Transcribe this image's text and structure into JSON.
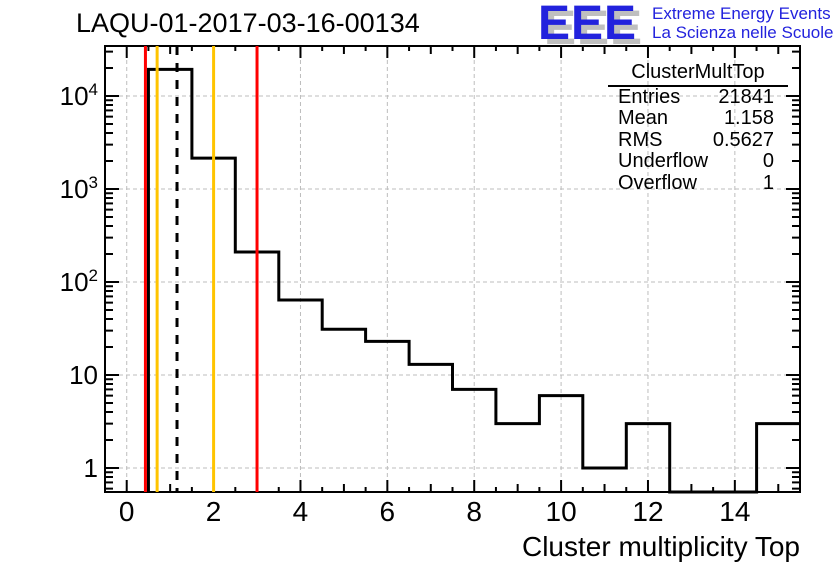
{
  "page_title": "LAQU-01-2017-03-16-00134",
  "logo": {
    "acronym": "EEE",
    "line1": "Extreme Energy Events",
    "line2": "La Scienza nelle Scuole",
    "blue": "#2222dd"
  },
  "stats_box": {
    "title": "ClusterMultTop",
    "rows": [
      {
        "label": "Entries",
        "value": "21841"
      },
      {
        "label": "Mean",
        "value": "1.158"
      },
      {
        "label": "RMS",
        "value": "0.5627"
      },
      {
        "label": "Underflow",
        "value": "0"
      },
      {
        "label": "Overflow",
        "value": "1"
      }
    ]
  },
  "chart_data": {
    "type": "bar",
    "subtype": "step-histogram",
    "title": "LAQU-01-2017-03-16-00134",
    "xlabel": "Cluster multiplicity Top",
    "ylabel": "",
    "yscale": "log",
    "xlim": [
      -0.5,
      15.5
    ],
    "ylim": [
      0.55,
      34000
    ],
    "bin_width": 1,
    "bin_centers": [
      1,
      2,
      3,
      4,
      5,
      6,
      7,
      8,
      9,
      10,
      11,
      12,
      13,
      14,
      15
    ],
    "values": [
      19300,
      2150,
      210,
      64,
      31,
      23,
      13,
      7,
      3,
      6,
      1,
      3,
      0,
      0,
      3
    ],
    "x_major_ticks": [
      0,
      2,
      4,
      6,
      8,
      10,
      12,
      14
    ],
    "y_major_ticks": [
      1,
      10,
      100,
      1000,
      10000
    ],
    "y_tick_labels": [
      [
        "1",
        ""
      ],
      [
        "10",
        ""
      ],
      [
        "10",
        "2"
      ],
      [
        "10",
        "3"
      ],
      [
        "10",
        "4"
      ]
    ],
    "grid": "dashed-gray",
    "grid_color": "#bdbdbd",
    "line_color": "#000000",
    "marker_lines": [
      {
        "x": 0.5,
        "color": "#ff0000",
        "style": "solid",
        "name": "alarm-low-line"
      },
      {
        "x": 0.7,
        "color": "#ffc400",
        "style": "solid",
        "name": "warn-low-line"
      },
      {
        "x": 1.158,
        "color": "#000000",
        "style": "dashed",
        "name": "mean-line"
      },
      {
        "x": 2,
        "color": "#ffc400",
        "style": "solid",
        "name": "warn-high-line"
      },
      {
        "x": 3,
        "color": "#ff0000",
        "style": "solid",
        "name": "alarm-high-line"
      }
    ]
  }
}
